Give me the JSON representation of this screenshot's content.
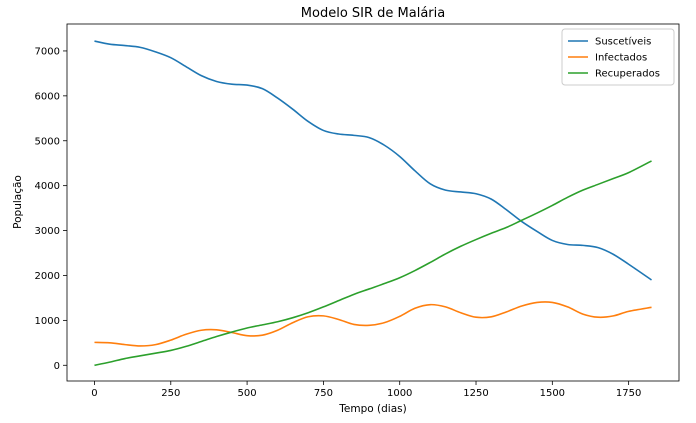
{
  "chart_data": {
    "type": "line",
    "title": "Modelo SIR de Malária",
    "xlabel": "Tempo (dias)",
    "ylabel": "População",
    "xlim": [
      -90,
      1915
    ],
    "ylim": [
      -350,
      7600
    ],
    "xticks": [
      0,
      250,
      500,
      750,
      1000,
      1250,
      1500,
      1750
    ],
    "yticks": [
      0,
      1000,
      2000,
      3000,
      4000,
      5000,
      6000,
      7000
    ],
    "grid": false,
    "legend_position": "top-right",
    "series": [
      {
        "name": "Suscetíveis",
        "color": "#1f77b4",
        "x": [
          0,
          50,
          100,
          150,
          200,
          250,
          300,
          350,
          400,
          450,
          500,
          550,
          600,
          650,
          700,
          750,
          800,
          850,
          900,
          950,
          1000,
          1050,
          1100,
          1150,
          1200,
          1250,
          1300,
          1350,
          1400,
          1450,
          1500,
          1550,
          1600,
          1650,
          1700,
          1750,
          1825
        ],
        "y": [
          7220,
          7150,
          7120,
          7080,
          6980,
          6850,
          6650,
          6450,
          6320,
          6260,
          6240,
          6160,
          5950,
          5700,
          5430,
          5230,
          5150,
          5120,
          5070,
          4900,
          4650,
          4330,
          4040,
          3900,
          3860,
          3820,
          3700,
          3460,
          3200,
          2980,
          2780,
          2690,
          2670,
          2620,
          2470,
          2250,
          1900
        ]
      },
      {
        "name": "Infectados",
        "color": "#ff7f0e",
        "x": [
          0,
          50,
          100,
          150,
          200,
          250,
          300,
          350,
          400,
          450,
          500,
          550,
          600,
          650,
          700,
          750,
          800,
          850,
          900,
          950,
          1000,
          1050,
          1100,
          1150,
          1200,
          1250,
          1300,
          1350,
          1400,
          1450,
          1500,
          1550,
          1600,
          1650,
          1700,
          1750,
          1825
        ],
        "y": [
          510,
          500,
          460,
          430,
          460,
          560,
          690,
          780,
          790,
          730,
          660,
          670,
          780,
          950,
          1080,
          1100,
          1020,
          910,
          890,
          950,
          1090,
          1270,
          1350,
          1300,
          1170,
          1070,
          1080,
          1190,
          1320,
          1400,
          1400,
          1300,
          1140,
          1070,
          1100,
          1200,
          1290
        ]
      },
      {
        "name": "Recuperados",
        "color": "#2ca02c",
        "x": [
          0,
          50,
          100,
          150,
          200,
          250,
          300,
          350,
          400,
          450,
          500,
          550,
          600,
          650,
          700,
          750,
          800,
          850,
          900,
          950,
          1000,
          1050,
          1100,
          1150,
          1200,
          1250,
          1300,
          1350,
          1400,
          1450,
          1500,
          1550,
          1600,
          1650,
          1700,
          1750,
          1825
        ],
        "y": [
          0,
          70,
          150,
          210,
          270,
          330,
          420,
          530,
          640,
          740,
          830,
          900,
          970,
          1060,
          1170,
          1300,
          1440,
          1580,
          1700,
          1820,
          1950,
          2110,
          2290,
          2480,
          2650,
          2800,
          2940,
          3070,
          3230,
          3390,
          3560,
          3740,
          3900,
          4030,
          4160,
          4290,
          4550
        ]
      }
    ]
  }
}
